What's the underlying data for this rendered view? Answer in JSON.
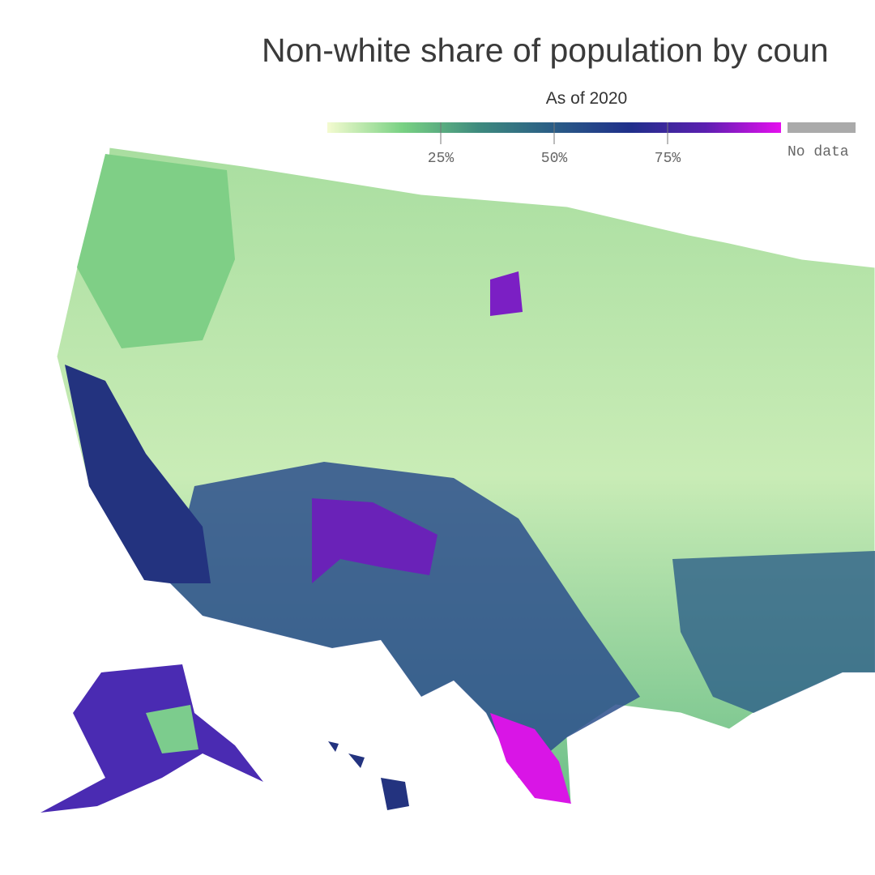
{
  "map": {
    "title": "Non-white share of population by coun",
    "subtitle": "As of 2020",
    "legend": {
      "lim": [
        0,
        100
      ],
      "ticks": [
        {
          "value": 25,
          "label": "25%"
        },
        {
          "value": 50,
          "label": "50%"
        },
        {
          "value": 75,
          "label": "75%"
        }
      ],
      "colors": [
        "#f4fbd0",
        "#78d183",
        "#3e8a7e",
        "#2a5c86",
        "#1f2f8a",
        "#5b1fb0",
        "#e60fef"
      ],
      "no_data_label": "No data",
      "no_data_color": "#aaaaaa"
    }
  }
}
